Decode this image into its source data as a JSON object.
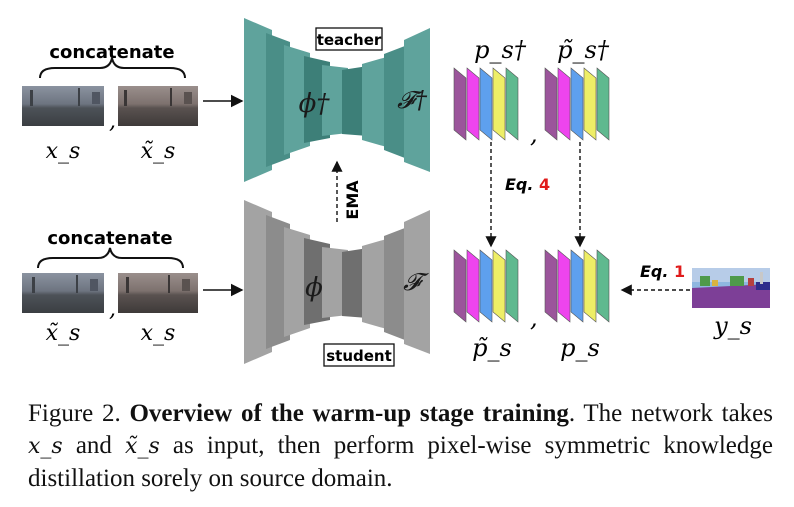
{
  "diagram": {
    "top_row": {
      "group_label": "concatenate",
      "input_a": "x_s",
      "input_b": "x̃_s",
      "comma": ","
    },
    "bottom_row": {
      "group_label": "concatenate",
      "input_a": "x̃_s",
      "input_b": "x_s",
      "comma": ","
    },
    "teacher": {
      "box_label": "teacher",
      "encoder_label": "ϕ†",
      "decoder_label": "𝓕†",
      "color": "#5fa39c"
    },
    "student": {
      "box_label": "student",
      "encoder_label": "ϕ",
      "decoder_label": "𝓕",
      "color": "#a3a3a3"
    },
    "ema_label": "EMA",
    "teacher_outputs": {
      "left_label": "p_s†",
      "right_label": "p̃_s†",
      "comma": ","
    },
    "student_outputs": {
      "left_label": "p̃_s",
      "right_label": "p_s",
      "comma": ","
    },
    "eq4": {
      "prefix": "Eq.",
      "number": "4"
    },
    "eq1": {
      "prefix": "Eq.",
      "number": "1"
    },
    "ground_truth_label": "y_s",
    "prediction_stack_colors": [
      "#9b559b",
      "#ee44ee",
      "#5ea0ee",
      "#eeee66",
      "#5fb98f"
    ],
    "eq_number_color": "#e01b1b"
  },
  "caption": {
    "fig_number": "Figure 2.",
    "title": "Overview of the warm-up stage training",
    "text_1": ". The network takes ",
    "math_1": "x_s",
    "text_2": " and ",
    "math_2": "x̃_s",
    "text_3": " as input, then perform pixel-wise symmetric knowledge distillation sorely on source domain."
  }
}
